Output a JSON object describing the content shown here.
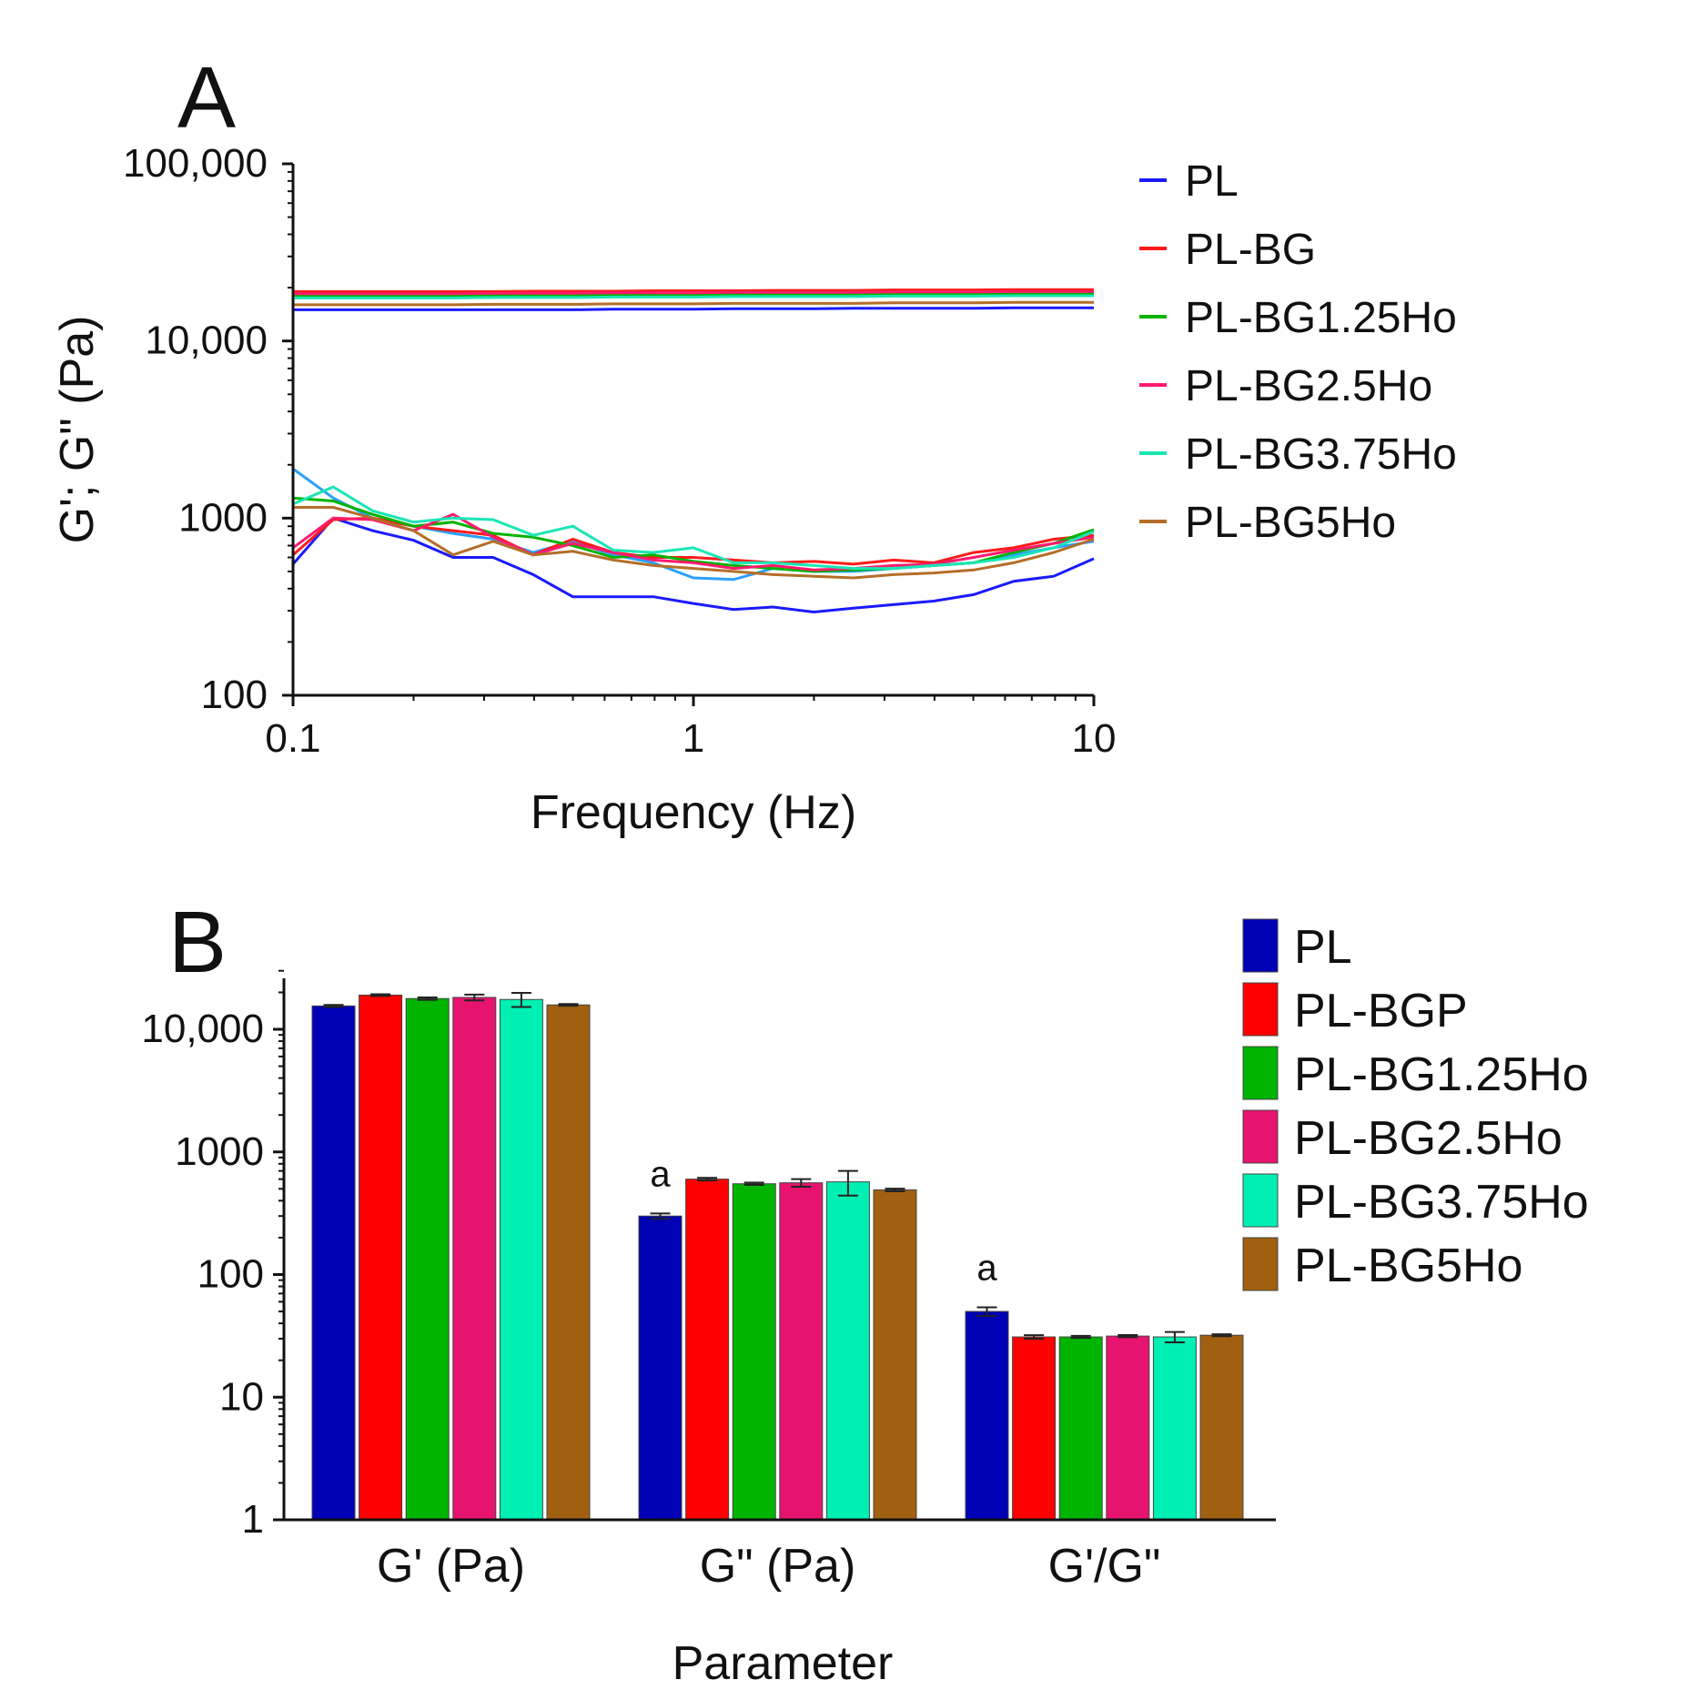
{
  "chart_data": [
    {
      "panel": "A",
      "type": "line",
      "xscale": "log",
      "yscale": "log",
      "xlabel": "Frequency (Hz)",
      "ylabel": "G'; G\" (Pa)",
      "xlim": [
        0.1,
        10
      ],
      "ylim": [
        100,
        100000
      ],
      "xticks": [
        {
          "value": 0.1,
          "label": "0.1"
        },
        {
          "value": 1,
          "label": "1"
        },
        {
          "value": 10,
          "label": "10"
        }
      ],
      "yticks": [
        {
          "value": 100,
          "label": "100"
        },
        {
          "value": 1000,
          "label": "1000"
        },
        {
          "value": 10000,
          "label": "10,000"
        },
        {
          "value": 100000,
          "label": "100,000"
        }
      ],
      "legend_position": "right",
      "x": [
        0.1,
        0.126,
        0.158,
        0.2,
        0.251,
        0.316,
        0.398,
        0.5,
        0.631,
        0.794,
        1,
        1.26,
        1.58,
        2,
        2.51,
        3.16,
        3.98,
        5.01,
        6.31,
        7.94,
        10
      ],
      "series": [
        {
          "name": "PL",
          "color": "#1a1aff",
          "storage_modulus": [
            15000,
            15000,
            15000,
            15000,
            15000,
            15000,
            15000,
            15000,
            15100,
            15100,
            15100,
            15200,
            15200,
            15200,
            15300,
            15300,
            15300,
            15300,
            15400,
            15400,
            15400
          ],
          "loss_modulus": [
            550,
            1000,
            850,
            750,
            600,
            600,
            480,
            360,
            360,
            360,
            330,
            305,
            315,
            295,
            310,
            325,
            340,
            370,
            440,
            470,
            590
          ]
        },
        {
          "name": "PL-BG",
          "color": "#ff1a1a",
          "storage_modulus": [
            19000,
            19000,
            19000,
            19000,
            19000,
            19000,
            19100,
            19100,
            19100,
            19200,
            19200,
            19200,
            19300,
            19300,
            19300,
            19400,
            19400,
            19400,
            19500,
            19500,
            19500
          ],
          "loss_modulus": [
            620,
            980,
            1000,
            900,
            850,
            800,
            620,
            760,
            640,
            600,
            600,
            580,
            560,
            570,
            550,
            580,
            560,
            640,
            680,
            760,
            800
          ]
        },
        {
          "name": "PL-BG1.25Ho",
          "color": "#00b400",
          "storage_modulus": [
            18000,
            18000,
            18000,
            18000,
            18000,
            18100,
            18100,
            18100,
            18200,
            18200,
            18200,
            18300,
            18300,
            18300,
            18300,
            18400,
            18400,
            18400,
            18500,
            18500,
            18500
          ],
          "loss_modulus": [
            1300,
            1250,
            1050,
            900,
            950,
            820,
            780,
            700,
            600,
            620,
            570,
            540,
            520,
            500,
            510,
            520,
            540,
            560,
            640,
            720,
            860
          ]
        },
        {
          "name": "PL-BG2.5Ho",
          "color": "#ff1a6e",
          "storage_modulus": [
            18500,
            18500,
            18500,
            18500,
            18500,
            18600,
            18600,
            18600,
            18700,
            18700,
            18700,
            18800,
            18800,
            18800,
            18800,
            18900,
            18900,
            18900,
            19000,
            19000,
            19000
          ],
          "loss_modulus": [
            680,
            1000,
            980,
            850,
            1050,
            780,
            620,
            720,
            640,
            580,
            560,
            520,
            540,
            510,
            520,
            540,
            550,
            600,
            660,
            720,
            780
          ]
        },
        {
          "name": "PL-BG3.75Ho",
          "color": "#1ae6b4",
          "storage_modulus": [
            17500,
            17500,
            17500,
            17500,
            17500,
            17600,
            17600,
            17600,
            17700,
            17700,
            17700,
            17800,
            17800,
            17800,
            17800,
            17900,
            17900,
            17900,
            18000,
            18000,
            18000
          ],
          "loss_modulus": [
            1200,
            1500,
            1100,
            950,
            1000,
            980,
            800,
            900,
            660,
            640,
            680,
            560,
            560,
            540,
            520,
            520,
            540,
            560,
            600,
            680,
            840
          ]
        },
        {
          "name": "PL-BG5Ho",
          "color": "#b46e28",
          "storage_modulus": [
            16000,
            16000,
            16000,
            16000,
            16000,
            16100,
            16100,
            16100,
            16200,
            16200,
            16200,
            16300,
            16300,
            16300,
            16300,
            16400,
            16400,
            16400,
            16500,
            16500,
            16500
          ],
          "loss_modulus": [
            1150,
            1150,
            1000,
            850,
            620,
            740,
            620,
            650,
            580,
            540,
            520,
            500,
            480,
            470,
            460,
            480,
            490,
            510,
            560,
            640,
            760
          ]
        }
      ],
      "extra_series": [
        {
          "color": "#2aa0ff",
          "loss_modulus": [
            1900,
            1300,
            1000,
            900,
            820,
            760,
            640,
            740,
            620,
            560,
            460,
            450,
            520,
            500,
            500,
            520,
            540,
            560,
            620,
            680,
            740
          ]
        }
      ]
    },
    {
      "panel": "B",
      "type": "bar",
      "yscale": "log",
      "xlabel": "Parameter",
      "ylabel": "",
      "ylim": [
        1,
        30000
      ],
      "yticks": [
        {
          "value": 1,
          "label": "1"
        },
        {
          "value": 10,
          "label": "10"
        },
        {
          "value": 100,
          "label": "100"
        },
        {
          "value": 1000,
          "label": "1000"
        },
        {
          "value": 10000,
          "label": "10,000"
        }
      ],
      "legend_position": "right",
      "categories": [
        "G' (Pa)",
        "G\" (Pa)",
        "G'/G\""
      ],
      "series": [
        {
          "name": "PL",
          "color": "#0000b4",
          "values": [
            15500,
            300,
            50
          ],
          "errors": [
            300,
            15,
            4
          ]
        },
        {
          "name": "PL-BGP",
          "color": "#ff0000",
          "values": [
            19000,
            600,
            31
          ],
          "errors": [
            300,
            15,
            1
          ]
        },
        {
          "name": "PL-BG1.25Ho",
          "color": "#00b400",
          "values": [
            17800,
            550,
            31
          ],
          "errors": [
            400,
            12,
            0.6
          ]
        },
        {
          "name": "PL-BG2.5Ho",
          "color": "#e6146e",
          "values": [
            18200,
            560,
            31.5
          ],
          "errors": [
            1000,
            40,
            0.6
          ]
        },
        {
          "name": "PL-BG3.75Ho",
          "color": "#00f0b4",
          "values": [
            17500,
            570,
            31
          ],
          "errors": [
            2300,
            130,
            3
          ]
        },
        {
          "name": "PL-BG5Ho",
          "color": "#a0600f",
          "values": [
            15800,
            490,
            32
          ],
          "errors": [
            250,
            12,
            0.6
          ]
        }
      ],
      "annotations": [
        {
          "category": "G\" (Pa)",
          "series": "PL",
          "text": "a"
        },
        {
          "category": "G'/G\"",
          "series": "PL",
          "text": "a"
        }
      ]
    }
  ],
  "panels": {
    "a": {
      "letter": "A"
    },
    "b": {
      "letter": "B"
    }
  }
}
